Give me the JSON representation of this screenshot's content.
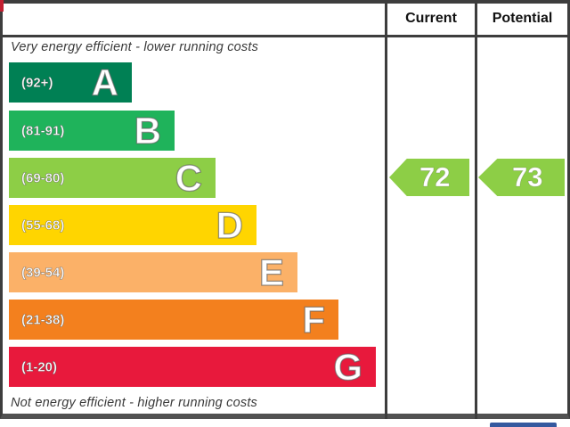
{
  "header": {
    "current_label": "Current",
    "potential_label": "Potential"
  },
  "captions": {
    "top": "Very energy efficient - lower running costs",
    "bottom": "Not energy efficient - higher running costs"
  },
  "chart_data": {
    "type": "bar",
    "chart_kind": "epc-energy-efficiency-rating",
    "categories": [
      "A",
      "B",
      "C",
      "D",
      "E",
      "F",
      "G"
    ],
    "bands": [
      {
        "letter": "A",
        "range": "(92+)",
        "min": 92,
        "max": 100,
        "color": "#008054"
      },
      {
        "letter": "B",
        "range": "(81-91)",
        "min": 81,
        "max": 91,
        "color": "#1fb35b"
      },
      {
        "letter": "C",
        "range": "(69-80)",
        "min": 69,
        "max": 80,
        "color": "#8dce46"
      },
      {
        "letter": "D",
        "range": "(55-68)",
        "min": 55,
        "max": 68,
        "color": "#ffd500"
      },
      {
        "letter": "E",
        "range": "(39-54)",
        "min": 39,
        "max": 54,
        "color": "#fbb168"
      },
      {
        "letter": "F",
        "range": "(21-38)",
        "min": 21,
        "max": 38,
        "color": "#f3801e"
      },
      {
        "letter": "G",
        "range": "(1-20)",
        "min": 1,
        "max": 20,
        "color": "#e8193c"
      }
    ],
    "series": [
      {
        "name": "Current",
        "value": 72,
        "band": "C"
      },
      {
        "name": "Potential",
        "value": 73,
        "band": "C"
      }
    ],
    "current": {
      "value": "72",
      "band": "C",
      "arrow_color": "#8dce46"
    },
    "potential": {
      "value": "73",
      "band": "C",
      "arrow_color": "#8dce46"
    },
    "legend_position": "none",
    "grid": false
  },
  "artifacts": {
    "corner_mark_color": "#c32032",
    "partial_blue_bar_color": "#35599f"
  },
  "colors": {
    "grid_line": "#3d3d3d",
    "caption_text": "#3a3a3a"
  }
}
